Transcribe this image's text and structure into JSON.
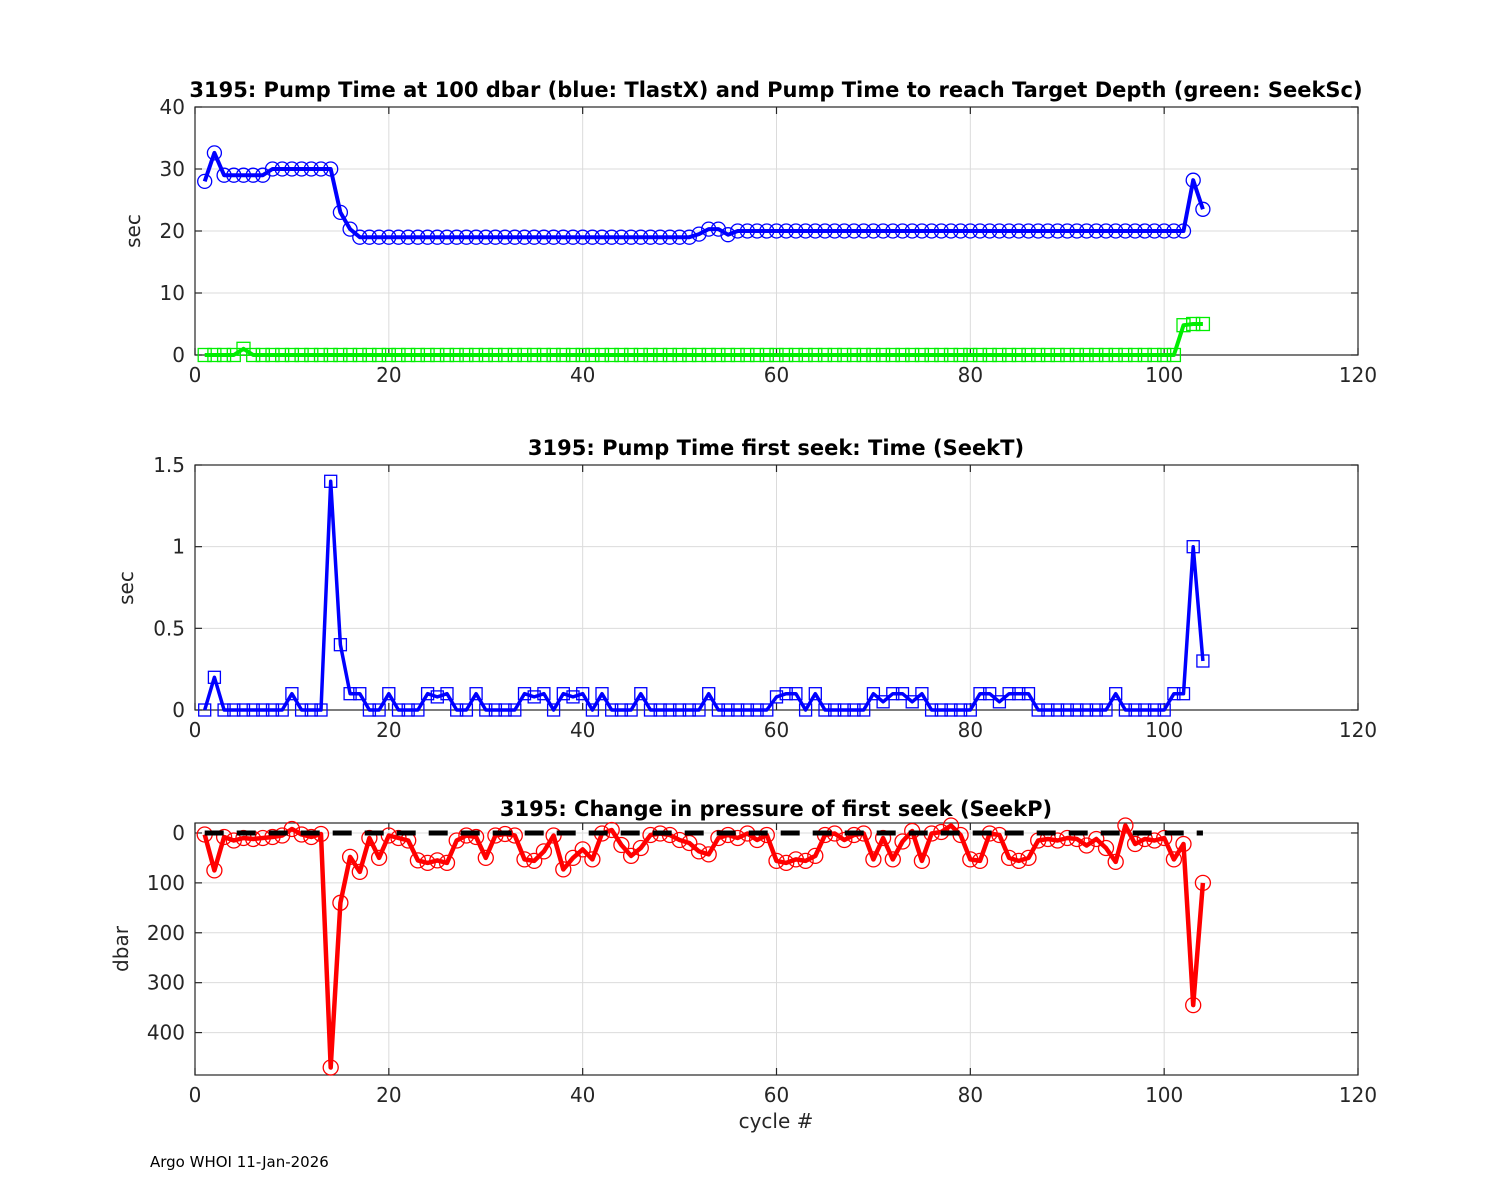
{
  "figure": {
    "footer": "Argo WHOI 11-Jan-2026",
    "colors": {
      "axis": "#262626",
      "grid": "#dbdbdb",
      "tick_label": "#262626",
      "zero_line": "#000000"
    }
  },
  "chart_data": [
    {
      "type": "line",
      "title": "3195:  Pump Time at 100 dbar (blue: TlastX) and Pump Time to reach Target Depth (green: SeekSc)",
      "xlabel": "",
      "ylabel": "sec",
      "xlim": [
        0,
        120
      ],
      "ylim": [
        0,
        40
      ],
      "xticks": [
        0,
        20,
        40,
        60,
        80,
        100,
        120
      ],
      "yticks": [
        0,
        10,
        20,
        30,
        40
      ],
      "grid": true,
      "legend": "none (series identified in title)",
      "x_rule": "x = cycle #, consecutive integers starting at 1",
      "series": [
        {
          "name": "TlastX",
          "color": "#0000ff",
          "marker": "circle",
          "values": [
            28,
            32.6,
            29,
            29,
            29,
            29,
            29,
            30,
            30,
            30,
            30,
            30,
            30,
            30,
            23,
            20.3,
            19,
            19,
            19,
            19,
            19,
            19,
            19,
            19,
            19,
            19,
            19,
            19,
            19,
            19,
            19,
            19,
            19,
            19,
            19,
            19,
            19,
            19,
            19,
            19,
            19,
            19,
            19,
            19,
            19,
            19,
            19,
            19,
            19,
            19,
            19,
            19.5,
            20.3,
            20.3,
            19.4,
            20,
            20,
            20,
            20,
            20,
            20,
            20,
            20,
            20,
            20,
            20,
            20,
            20,
            20,
            20,
            20,
            20,
            20,
            20,
            20,
            20,
            20,
            20,
            20,
            20,
            20,
            20,
            20,
            20,
            20,
            20,
            20,
            20,
            20,
            20,
            20,
            20,
            20,
            20,
            20,
            20,
            20,
            20,
            20,
            20,
            20,
            20,
            28.2,
            23.5
          ]
        },
        {
          "name": "SeekSc",
          "color": "#00ee00",
          "marker": "square",
          "values": [
            0,
            0,
            0,
            0,
            1,
            0,
            0,
            0,
            0,
            0,
            0,
            0,
            0,
            0,
            0,
            0,
            0,
            0,
            0,
            0,
            0,
            0,
            0,
            0,
            0,
            0,
            0,
            0,
            0,
            0,
            0,
            0,
            0,
            0,
            0,
            0,
            0,
            0,
            0,
            0,
            0,
            0,
            0,
            0,
            0,
            0,
            0,
            0,
            0,
            0,
            0,
            0,
            0,
            0,
            0,
            0,
            0,
            0,
            0,
            0,
            0,
            0,
            0,
            0,
            0,
            0,
            0,
            0,
            0,
            0,
            0,
            0,
            0,
            0,
            0,
            0,
            0,
            0,
            0,
            0,
            0,
            0,
            0,
            0,
            0,
            0,
            0,
            0,
            0,
            0,
            0,
            0,
            0,
            0,
            0,
            0,
            0,
            0,
            0,
            0,
            0,
            4.8,
            5,
            5
          ]
        }
      ]
    },
    {
      "type": "line",
      "title": "3195: Pump Time first seek: Time (SeekT)",
      "xlabel": "",
      "ylabel": "sec",
      "xlim": [
        0,
        120
      ],
      "ylim": [
        0,
        1.5
      ],
      "xticks": [
        0,
        20,
        40,
        60,
        80,
        100,
        120
      ],
      "yticks": [
        0,
        0.5,
        1,
        1.5
      ],
      "grid": true,
      "x_rule": "x = cycle #, consecutive integers starting at 1",
      "series": [
        {
          "name": "SeekT",
          "color": "#0000ff",
          "marker": "square",
          "values": [
            0,
            0.2,
            0,
            0,
            0,
            0,
            0,
            0,
            0,
            0.1,
            0,
            0,
            0,
            1.4,
            0.4,
            0.1,
            0.1,
            0,
            0,
            0.1,
            0,
            0,
            0,
            0.1,
            0.08,
            0.1,
            0,
            0,
            0.1,
            0,
            0,
            0,
            0,
            0.1,
            0.08,
            0.1,
            0,
            0.1,
            0.08,
            0.1,
            0,
            0.1,
            0,
            0,
            0,
            0.1,
            0,
            0,
            0,
            0,
            0,
            0,
            0.1,
            0,
            0,
            0,
            0,
            0,
            0,
            0.08,
            0.1,
            0.1,
            0,
            0.1,
            0,
            0,
            0,
            0,
            0,
            0.1,
            0.05,
            0.1,
            0.1,
            0.05,
            0.1,
            0,
            0,
            0,
            0,
            0,
            0.1,
            0.1,
            0.05,
            0.1,
            0.1,
            0.1,
            0,
            0,
            0,
            0,
            0,
            0,
            0,
            0,
            0.1,
            0,
            0,
            0,
            0,
            0,
            0.1,
            0.1,
            1,
            0.3
          ]
        }
      ]
    },
    {
      "type": "line",
      "title": "3195: Change in pressure of first seek (SeekP)",
      "xlabel": "cycle #",
      "ylabel": "dbar",
      "xlim": [
        0,
        120
      ],
      "ylim": [
        -20,
        485
      ],
      "y_reversed": true,
      "xticks": [
        0,
        20,
        40,
        60,
        80,
        100,
        120
      ],
      "yticks": [
        0,
        100,
        200,
        300,
        400
      ],
      "grid": true,
      "zero_line": {
        "style": "dashed",
        "color": "#000000",
        "y": 0
      },
      "x_rule": "x = cycle #, consecutive integers starting at 1; axis direction reversed (0 at top)",
      "series": [
        {
          "name": "SeekP",
          "color": "#ff0000",
          "marker": "circle",
          "values": [
            3,
            75,
            8,
            15,
            10,
            12,
            10,
            8,
            5,
            -8,
            3,
            8,
            2,
            470,
            140,
            48,
            78,
            10,
            50,
            5,
            10,
            15,
            55,
            60,
            55,
            60,
            15,
            5,
            8,
            50,
            5,
            2,
            5,
            53,
            56,
            37,
            5,
            73,
            50,
            33,
            53,
            1,
            -6,
            24,
            46,
            30,
            4,
            1,
            4,
            14,
            20,
            37,
            43,
            10,
            4,
            10,
            1,
            14,
            4,
            56,
            60,
            53,
            56,
            46,
            4,
            1,
            14,
            4,
            1,
            53,
            10,
            53,
            17,
            -4,
            56,
            1,
            -2,
            -15,
            4,
            53,
            56,
            1,
            4,
            50,
            56,
            50,
            15,
            12,
            15,
            10,
            12,
            25,
            12,
            30,
            58,
            -15,
            22,
            12,
            15,
            10,
            53,
            22,
            345,
            100
          ]
        }
      ]
    }
  ]
}
